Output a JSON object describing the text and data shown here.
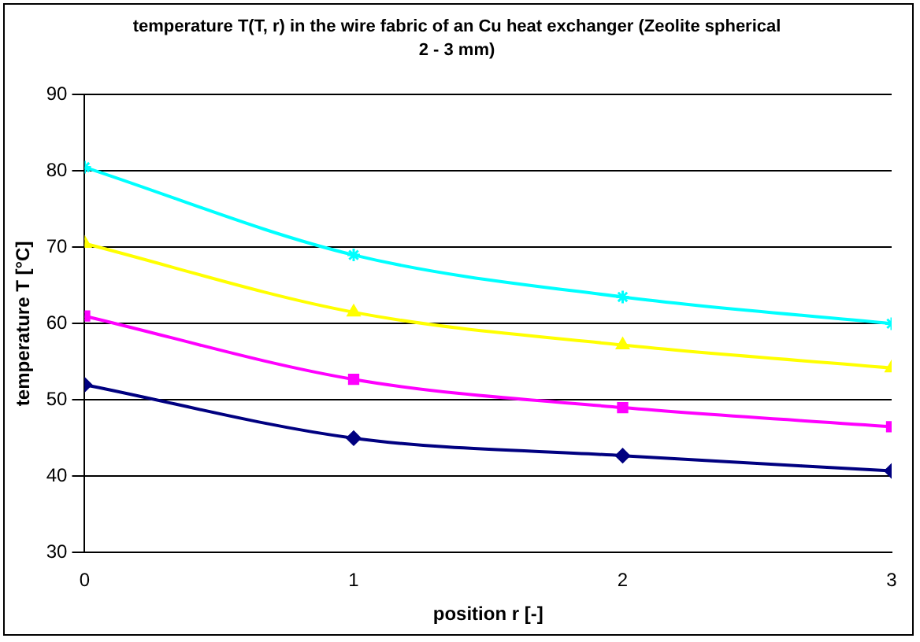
{
  "chart_data": {
    "type": "line",
    "title": "temperature T(T, r) in the wire fabric of an Cu heat exchanger (Zeolite spherical 2 - 3 mm)",
    "xlabel": "position r [-]",
    "ylabel": "temperature T [°C]",
    "x": [
      0,
      1,
      2,
      3
    ],
    "series": [
      {
        "color": "#000080",
        "marker": "diamond",
        "values": [
          52,
          45,
          42.7,
          40.7
        ]
      },
      {
        "color": "#ff00ff",
        "marker": "square",
        "values": [
          61,
          52.7,
          49,
          46.5
        ]
      },
      {
        "color": "#ffff00",
        "marker": "triangle",
        "values": [
          70.5,
          61.5,
          57.2,
          54.2
        ]
      },
      {
        "color": "#00ffff",
        "marker": "cross",
        "values": [
          80.5,
          69,
          63.5,
          60
        ]
      }
    ],
    "xlim": [
      0,
      3
    ],
    "xticks": [
      0,
      1,
      2,
      3
    ],
    "ylim": [
      30,
      90
    ],
    "yticks": [
      30,
      40,
      50,
      60,
      70,
      80,
      90
    ],
    "grid": "y",
    "legend": false,
    "line_style": "solid"
  }
}
